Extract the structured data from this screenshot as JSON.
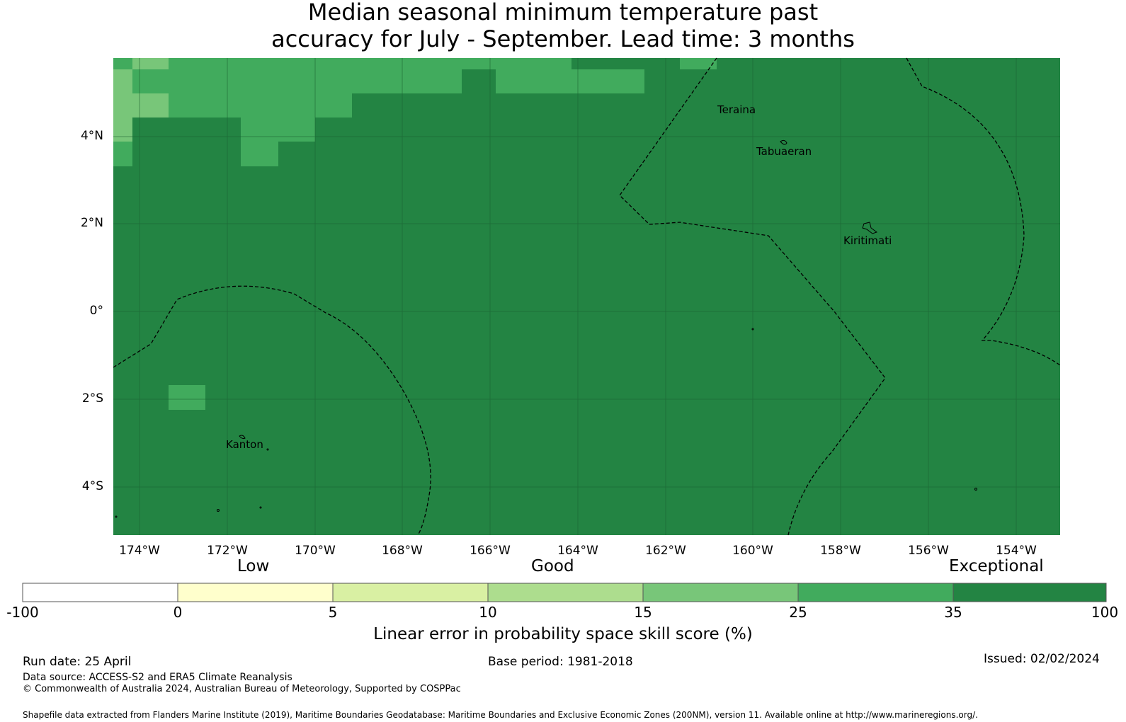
{
  "title": {
    "line1": "Median seasonal minimum temperature past",
    "line2": "accuracy for July - September. Lead time: 3 months"
  },
  "map": {
    "lat_labels": [
      "4°N",
      "2°N",
      "0°",
      "2°S",
      "4°S"
    ],
    "lon_labels": [
      "174°W",
      "172°W",
      "170°W",
      "168°W",
      "166°W",
      "164°W",
      "162°W",
      "160°W",
      "158°W",
      "156°W",
      "154°W"
    ],
    "places": [
      "Teraina",
      "Tabuaeran",
      "Kiritimati",
      "Kanton"
    ],
    "colors": {
      "exceptional": "#238443",
      "very_good": "#41ab5d",
      "good_high": "#78c679",
      "grid": "#1a5e30"
    }
  },
  "legend": {
    "categories": [
      "Low",
      "Good",
      "Exceptional"
    ],
    "ticks": [
      "-100",
      "0",
      "5",
      "10",
      "15",
      "25",
      "35",
      "100"
    ],
    "colors": [
      "#ffffff",
      "#ffffcc",
      "#d9f0a3",
      "#addd8e",
      "#78c679",
      "#41ab5d",
      "#238443"
    ],
    "title": "Linear error in probability space skill score (%)"
  },
  "footer": {
    "run_date": "Run date: 25 April",
    "base_period": "Base period: 1981-2018",
    "issued": "Issued: 02/02/2024",
    "data_source": "Data source: ACCESS-S2 and ERA5 Climate Reanalysis",
    "copyright": "© Commonwealth of Australia 2024, Australian Bureau of Meteorology, Supported by COSPPac",
    "shapefile": "Shapefile data extracted from Flanders Marine Institute (2019), Maritime Boundaries Geodatabase: Maritime Boundaries and Exclusive Economic Zones (200NM), version 11. Available online at http://www.marineregions.org/."
  }
}
